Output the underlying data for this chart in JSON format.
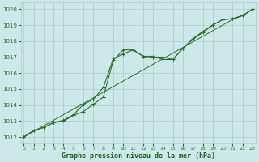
{
  "title": "Graphe pression niveau de la mer (hPa)",
  "xlabel_ticks": [
    0,
    1,
    2,
    3,
    4,
    5,
    6,
    7,
    8,
    9,
    10,
    11,
    12,
    13,
    14,
    15,
    16,
    17,
    18,
    19,
    20,
    21,
    22,
    23
  ],
  "yticks": [
    1012,
    1013,
    1014,
    1015,
    1016,
    1017,
    1018,
    1019,
    1020
  ],
  "ylim": [
    1011.6,
    1020.4
  ],
  "xlim": [
    -0.3,
    23.3
  ],
  "bg_color": "#cce8e8",
  "grid_color": "#aacccc",
  "line_color": "#2d6e2d",
  "title_color": "#1a5c1a",
  "smooth_line_y": [
    1012.0,
    1012.35,
    1012.7,
    1013.05,
    1013.4,
    1013.75,
    1014.1,
    1014.45,
    1014.8,
    1015.15,
    1015.5,
    1015.85,
    1016.2,
    1016.55,
    1016.9,
    1017.25,
    1017.6,
    1017.95,
    1018.3,
    1018.65,
    1019.0,
    1019.35,
    1019.6,
    1020.0
  ],
  "line1_y": [
    1012.0,
    1012.4,
    1012.6,
    1012.9,
    1013.0,
    1013.35,
    1013.6,
    1014.05,
    1014.5,
    1016.8,
    1017.45,
    1017.45,
    1017.05,
    1017.0,
    1017.0,
    1016.85,
    1017.55,
    1018.1,
    1018.55,
    1019.0,
    1019.35,
    1019.4,
    1019.6,
    1020.0
  ],
  "line2_y": [
    1012.0,
    1012.4,
    1012.6,
    1012.9,
    1013.05,
    1013.4,
    1014.05,
    1014.35,
    1015.1,
    1016.9,
    1017.2,
    1017.45,
    1017.05,
    1017.05,
    1016.85,
    1016.85,
    1017.55,
    1018.15,
    1018.6,
    1019.0,
    1019.35,
    1019.4,
    1019.6,
    1020.0
  ],
  "figwidth": 3.2,
  "figheight": 2.0,
  "dpi": 100
}
